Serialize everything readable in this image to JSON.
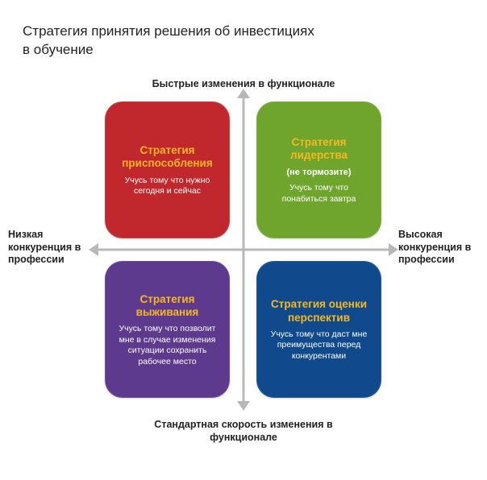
{
  "title": "Стратегия принятия решения об инвестициях в обучение",
  "axes": {
    "top": "Быстрые изменения в функционале",
    "bottom": "Стандартная скорость изменения в функционале",
    "left": "Низкая конкуренция в профессии",
    "right": "Высокая конкуренция в профессии",
    "line_color": "#b8b8b8",
    "arrow_color": "#b8b8b8"
  },
  "quadrants": {
    "tl": {
      "title": "Стратегия приспособления",
      "subtitle": "",
      "body": "Учусь тому что нужно сегодня и сейчас",
      "bg": "#c1282d",
      "title_color": "#f6b81f"
    },
    "tr": {
      "title": "Стратегия лидерства",
      "subtitle": "(не тормозите)",
      "body": "Учусь тому что понабиться завтра",
      "bg": "#6fa52d",
      "title_color": "#f6b81f"
    },
    "bl": {
      "title": "Стратегия выживания",
      "subtitle": "",
      "body": "Учусь тому что позволит мне в случае изменения ситуации сохранить рабочее место",
      "bg": "#5d3a8e",
      "title_color": "#f6b81f"
    },
    "br": {
      "title": "Стратегия оценки перспектив",
      "subtitle": "",
      "body": "Учусь тому что даст мне преимущества перед конкурентами",
      "bg": "#104a8c",
      "title_color": "#f6b81f"
    }
  },
  "style": {
    "page_bg": "#ffffff",
    "text_color": "#222222",
    "title_fontsize": 17,
    "axis_label_fontsize": 12.5,
    "quad_title_fontsize": 13.5,
    "quad_body_fontsize": 10.5,
    "quad_radius": 22,
    "quad_width": 155,
    "quad_height": 170,
    "matrix_width": 364,
    "matrix_height": 380
  }
}
